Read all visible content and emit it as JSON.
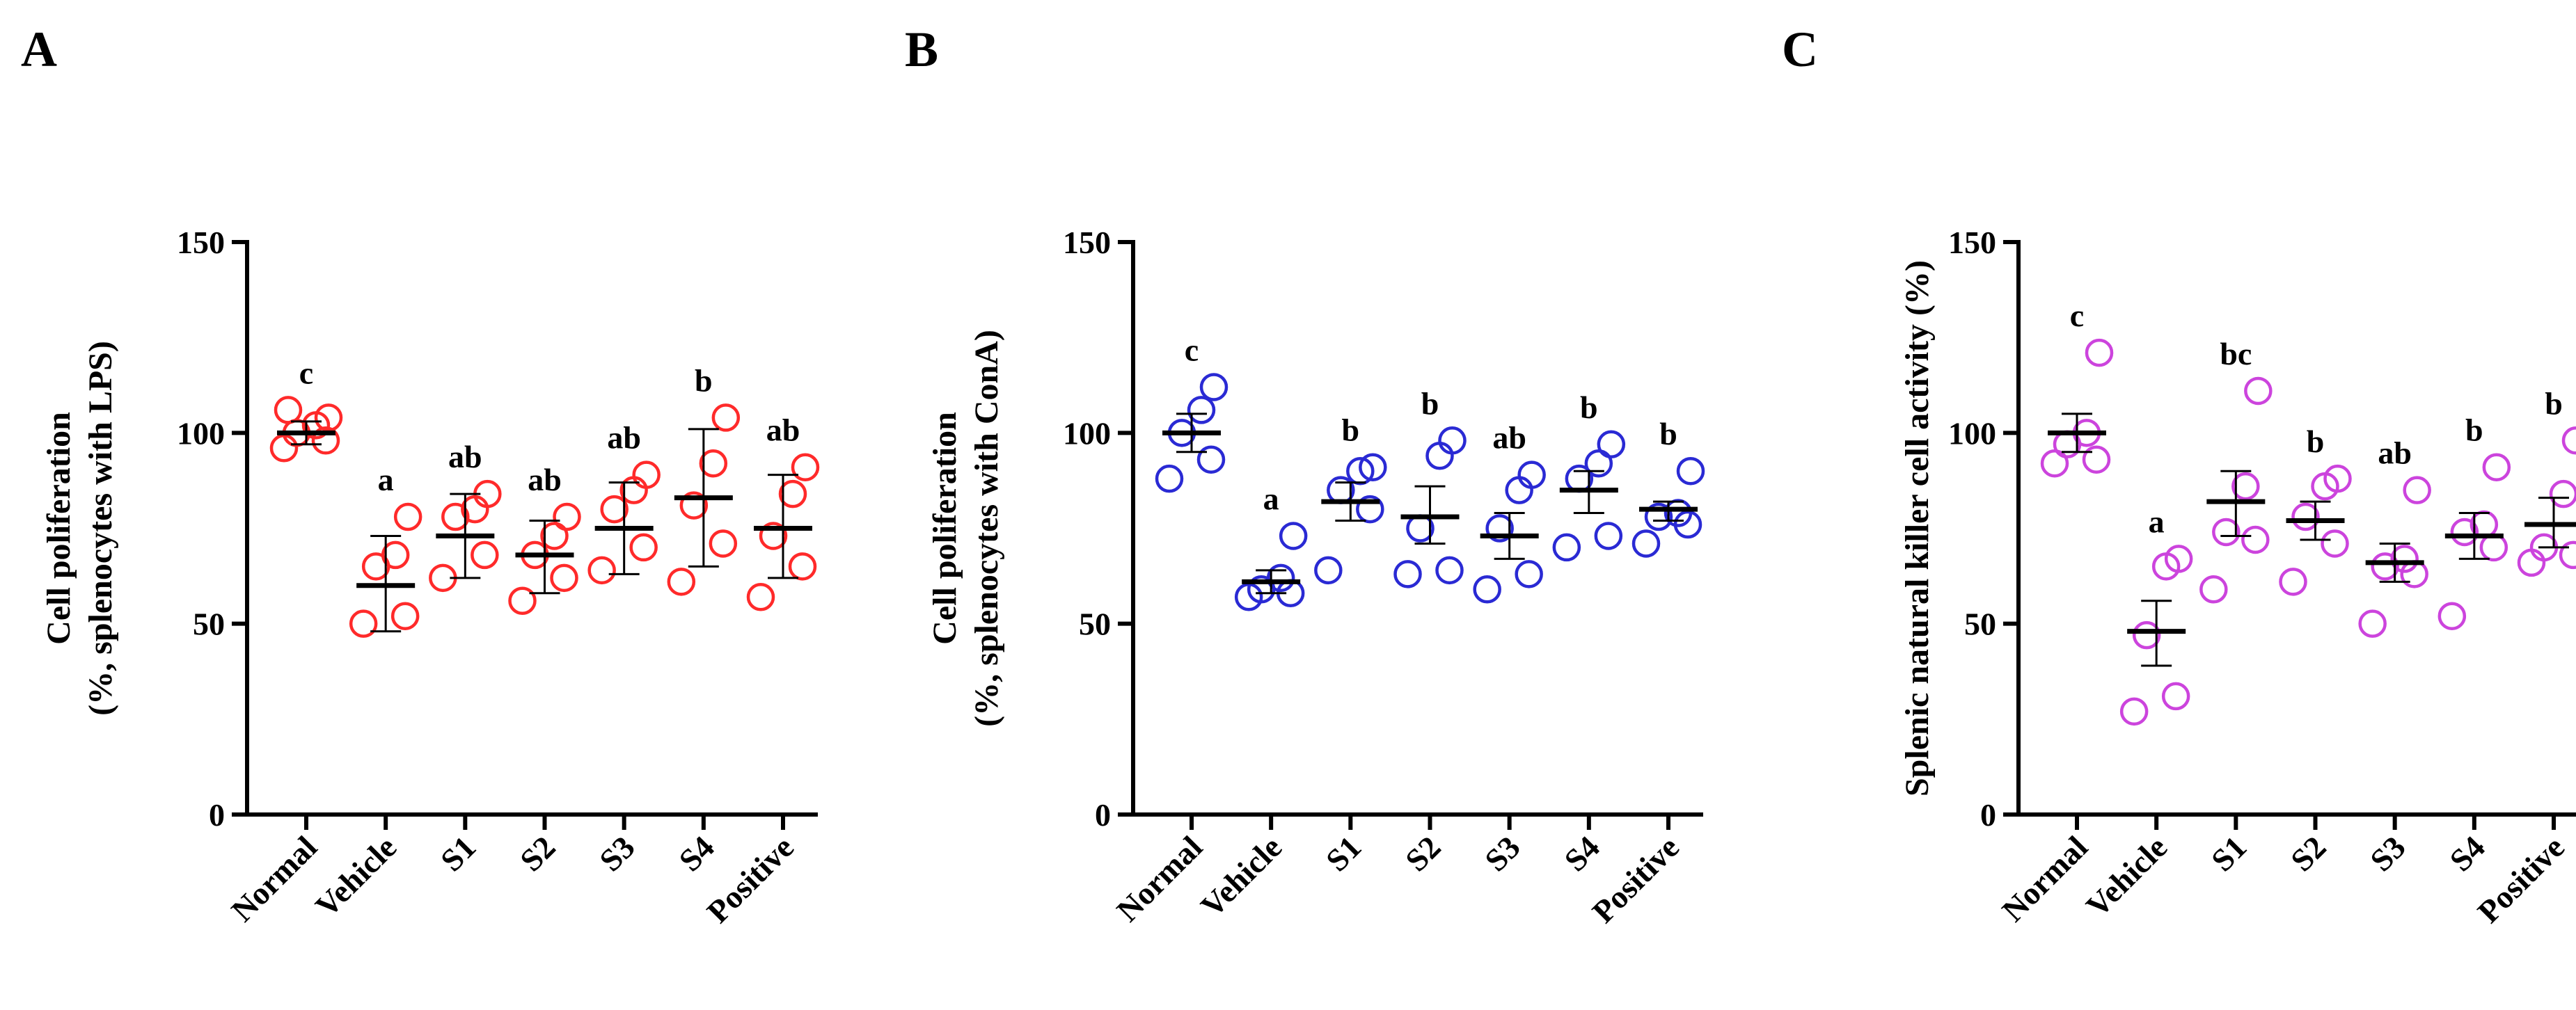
{
  "chart_data": [
    {
      "panel": "A",
      "type": "scatter",
      "ylabel_lines": [
        "Cell poliferation",
        "(%, splenocytes with LPS)"
      ],
      "ylim": [
        0,
        150
      ],
      "yticks": [
        "0",
        "50",
        "100",
        "150"
      ],
      "categories": [
        "Normal",
        "Vehicle",
        "S1",
        "S2",
        "S3",
        "S4",
        "Positive"
      ],
      "color": "#ff2a2a",
      "groups": [
        {
          "points": [
            96,
            98,
            100,
            102,
            104,
            106
          ],
          "mean": 100,
          "err": [
            97,
            103
          ],
          "sig": "c"
        },
        {
          "points": [
            50,
            52,
            65,
            68,
            78
          ],
          "mean": 60,
          "err": [
            48,
            73
          ],
          "sig": "a"
        },
        {
          "points": [
            62,
            68,
            78,
            80,
            84
          ],
          "mean": 73,
          "err": [
            62,
            84
          ],
          "sig": "ab"
        },
        {
          "points": [
            56,
            62,
            68,
            73,
            78
          ],
          "mean": 68,
          "err": [
            58,
            77
          ],
          "sig": "ab"
        },
        {
          "points": [
            64,
            70,
            80,
            85,
            89
          ],
          "mean": 75,
          "err": [
            63,
            87
          ],
          "sig": "ab"
        },
        {
          "points": [
            61,
            71,
            81,
            92,
            104
          ],
          "mean": 83,
          "err": [
            65,
            101
          ],
          "sig": "b"
        },
        {
          "points": [
            57,
            65,
            73,
            84,
            91
          ],
          "mean": 75,
          "err": [
            62,
            89
          ],
          "sig": "ab"
        }
      ]
    },
    {
      "panel": "B",
      "type": "scatter",
      "ylabel_lines": [
        "Cell poliferation",
        "(%, splenocytes with ConA)"
      ],
      "ylim": [
        0,
        150
      ],
      "yticks": [
        "0",
        "50",
        "100",
        "150"
      ],
      "categories": [
        "Normal",
        "Vehicle",
        "S1",
        "S2",
        "S3",
        "S4",
        "Positive"
      ],
      "color": "#2a2ad4",
      "groups": [
        {
          "points": [
            88,
            93,
            100,
            106,
            112
          ],
          "mean": 100,
          "err": [
            95,
            105
          ],
          "sig": "c"
        },
        {
          "points": [
            57,
            58,
            59,
            62,
            73
          ],
          "mean": 61,
          "err": [
            58,
            64
          ],
          "sig": "a"
        },
        {
          "points": [
            64,
            80,
            85,
            90,
            91
          ],
          "mean": 82,
          "err": [
            77,
            87
          ],
          "sig": "b"
        },
        {
          "points": [
            63,
            64,
            75,
            94,
            98
          ],
          "mean": 78,
          "err": [
            71,
            86
          ],
          "sig": "b"
        },
        {
          "points": [
            59,
            63,
            75,
            85,
            89
          ],
          "mean": 73,
          "err": [
            67,
            79
          ],
          "sig": "ab"
        },
        {
          "points": [
            70,
            73,
            88,
            92,
            97
          ],
          "mean": 85,
          "err": [
            79,
            90
          ],
          "sig": "b"
        },
        {
          "points": [
            71,
            76,
            78,
            79,
            90
          ],
          "mean": 80,
          "err": [
            77,
            82
          ],
          "sig": "b"
        }
      ]
    },
    {
      "panel": "C",
      "type": "scatter",
      "ylabel_lines": [
        "Splenic natural killer cell activity (%)"
      ],
      "ylim": [
        0,
        150
      ],
      "yticks": [
        "0",
        "50",
        "100",
        "150"
      ],
      "categories": [
        "Normal",
        "Vehicle",
        "S1",
        "S2",
        "S3",
        "S4",
        "Positive"
      ],
      "color": "#cc44dd",
      "groups": [
        {
          "points": [
            92,
            93,
            97,
            100,
            121
          ],
          "mean": 100,
          "err": [
            95,
            105
          ],
          "sig": "c"
        },
        {
          "points": [
            27,
            31,
            47,
            65,
            67
          ],
          "mean": 48,
          "err": [
            39,
            56
          ],
          "sig": "a"
        },
        {
          "points": [
            59,
            72,
            74,
            86,
            111
          ],
          "mean": 82,
          "err": [
            73,
            90
          ],
          "sig": "bc"
        },
        {
          "points": [
            61,
            71,
            78,
            86,
            88
          ],
          "mean": 77,
          "err": [
            72,
            82
          ],
          "sig": "b"
        },
        {
          "points": [
            50,
            63,
            65,
            67,
            85
          ],
          "mean": 66,
          "err": [
            61,
            71
          ],
          "sig": "ab"
        },
        {
          "points": [
            52,
            70,
            74,
            76,
            91
          ],
          "mean": 73,
          "err": [
            67,
            79
          ],
          "sig": "b"
        },
        {
          "points": [
            66,
            68,
            70,
            84,
            98
          ],
          "mean": 76,
          "err": [
            70,
            83
          ],
          "sig": "b"
        }
      ]
    }
  ]
}
